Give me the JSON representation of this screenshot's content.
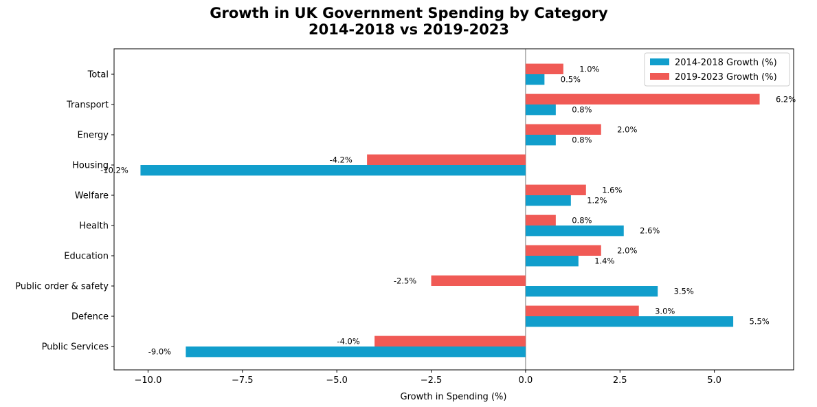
{
  "chart_data": {
    "type": "bar",
    "orientation": "horizontal",
    "title_line1": "Growth in UK Government Spending by Category",
    "title_line2": "2014-2018 vs 2019-2023",
    "xlabel": "Growth in Spending (%)",
    "ylabel": "",
    "xlim": [
      -10.9,
      7.1
    ],
    "xticks": [
      -10.0,
      -7.5,
      -5.0,
      -2.5,
      0.0,
      2.5,
      5.0
    ],
    "xtick_labels": [
      "−10.0",
      "−7.5",
      "−5.0",
      "−2.5",
      "0.0",
      "2.5",
      "5.0"
    ],
    "categories": [
      "Public Services",
      "Defence",
      "Public order & safety",
      "Education",
      "Health",
      "Welfare",
      "Housing",
      "Energy",
      "Transport",
      "Total"
    ],
    "series": [
      {
        "name": "2014-2018 Growth (%)",
        "color": "#119ecc",
        "values": [
          -9.0,
          5.5,
          3.5,
          1.4,
          2.6,
          1.2,
          -10.2,
          0.8,
          0.8,
          0.5
        ],
        "labels": [
          "-9.0%",
          "5.5%",
          "3.5%",
          "1.4%",
          "2.6%",
          "1.2%",
          "-10.2%",
          "0.8%",
          "0.8%",
          "0.5%"
        ]
      },
      {
        "name": "2019-2023 Growth (%)",
        "color": "#f05a55",
        "values": [
          -4.0,
          3.0,
          -2.5,
          2.0,
          0.8,
          1.6,
          -4.2,
          2.0,
          6.2,
          1.0
        ],
        "labels": [
          "-4.0%",
          "3.0%",
          "-2.5%",
          "2.0%",
          "0.8%",
          "1.6%",
          "-4.2%",
          "2.0%",
          "6.2%",
          "1.0%"
        ]
      }
    ],
    "legend_position": "top-right",
    "grid": false,
    "zero_line": true
  }
}
